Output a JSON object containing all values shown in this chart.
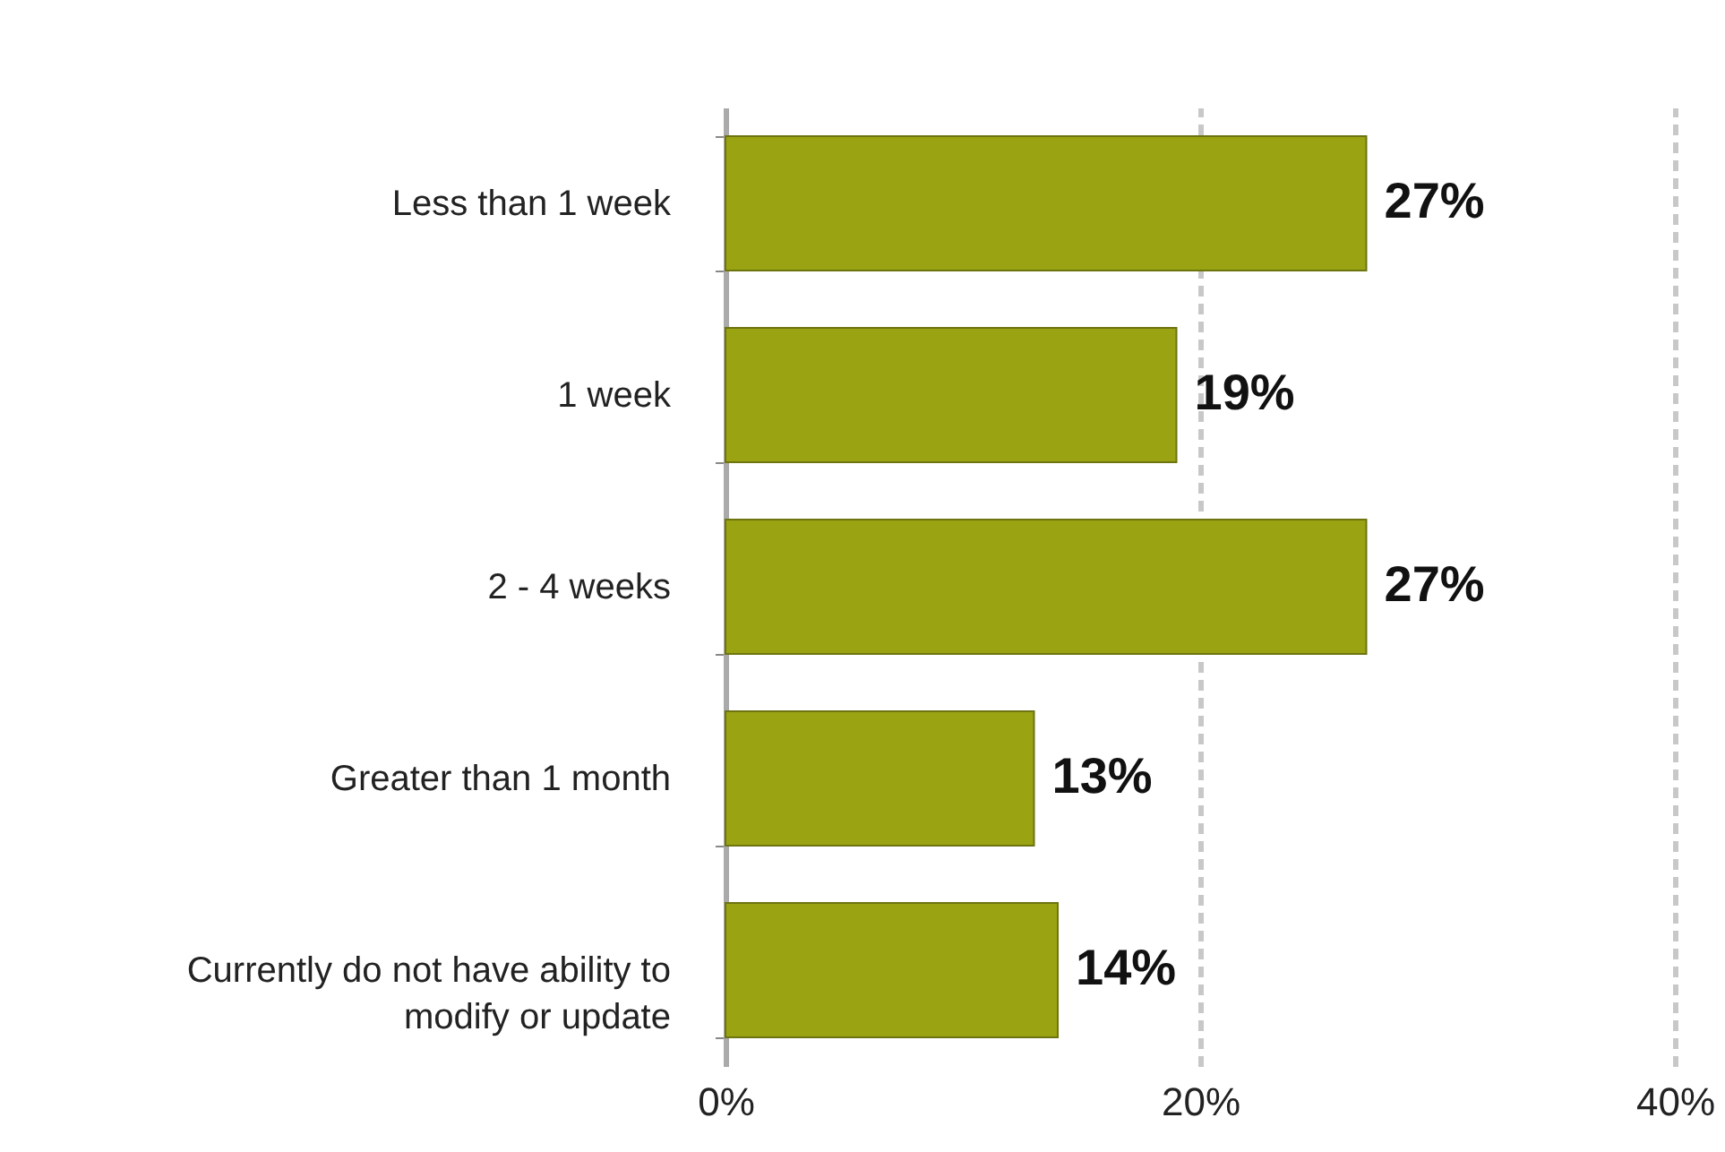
{
  "chart_data": {
    "type": "bar",
    "orientation": "horizontal",
    "categories": [
      "Less than 1 week",
      "1 week",
      "2 - 4 weeks",
      "Greater than 1 month",
      "Currently do not have ability to modify or update"
    ],
    "values": [
      27,
      19,
      27,
      13,
      14
    ],
    "value_labels": [
      "27%",
      "19%",
      "27%",
      "13%",
      "14%"
    ],
    "color": "#9aa312",
    "xlim": [
      0,
      40
    ],
    "xticks": [
      {
        "value": 0,
        "label": "0%"
      },
      {
        "value": 20,
        "label": "20%"
      },
      {
        "value": 40,
        "label": "40%"
      }
    ],
    "grid": "x"
  }
}
